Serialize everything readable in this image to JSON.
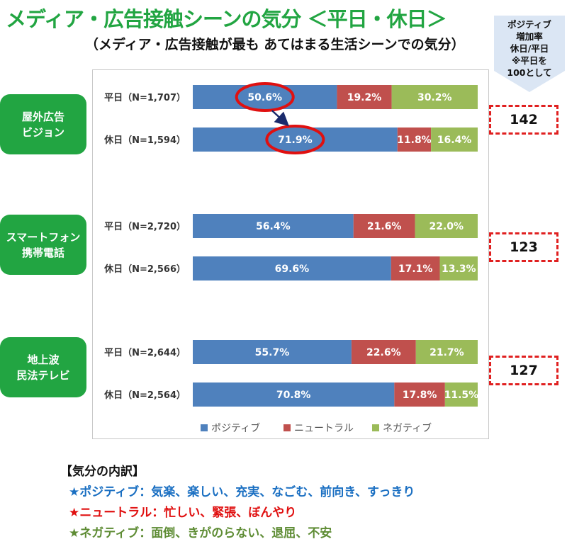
{
  "title": "メディア・広告接触シーンの気分 ＜平日・休日＞",
  "subtitle": "（メディア・広告接触が最も あてはまる生活シーンでの気分）",
  "callout": {
    "lines": [
      "ポジティブ",
      "増加率",
      "休日/平日",
      "※平日を",
      "100として"
    ]
  },
  "colors": {
    "positive": "#4f81bd",
    "neutral": "#c0504d",
    "negative": "#9bbb59",
    "green_label": "#22a542",
    "highlight_red": "#e01010"
  },
  "chart_data": {
    "type": "bar",
    "orientation": "horizontal",
    "stacked": true,
    "percent": true,
    "groups": [
      {
        "name": [
          "屋外広告",
          "ビジョン"
        ],
        "index": "142",
        "rows": [
          {
            "label": "平日（N=1,707）",
            "values": [
              50.6,
              19.2,
              30.2
            ],
            "value_labels": [
              "50.6%",
              "19.2%",
              "30.2%"
            ]
          },
          {
            "label": "休日（N=1,594）",
            "values": [
              71.9,
              11.8,
              16.4
            ],
            "value_labels": [
              "71.9%",
              "11.8%",
              "16.4%"
            ]
          }
        ]
      },
      {
        "name": [
          "スマートフォン",
          "携帯電話"
        ],
        "index": "123",
        "rows": [
          {
            "label": "平日（N=2,720）",
            "values": [
              56.4,
              21.6,
              22.0
            ],
            "value_labels": [
              "56.4%",
              "21.6%",
              "22.0%"
            ]
          },
          {
            "label": "休日（N=2,566）",
            "values": [
              69.6,
              17.1,
              13.3
            ],
            "value_labels": [
              "69.6%",
              "17.1%",
              "13.3%"
            ]
          }
        ]
      },
      {
        "name": [
          "地上波",
          "民法テレビ"
        ],
        "index": "127",
        "rows": [
          {
            "label": "平日（N=2,644）",
            "values": [
              55.7,
              22.6,
              21.7
            ],
            "value_labels": [
              "55.7%",
              "22.6%",
              "21.7%"
            ]
          },
          {
            "label": "休日（N=2,564）",
            "values": [
              70.8,
              17.8,
              11.5
            ],
            "value_labels": [
              "70.8%",
              "17.8%",
              "11.5%"
            ]
          }
        ]
      }
    ],
    "series": [
      {
        "name": "ポジティブ"
      },
      {
        "name": "ニュートラル"
      },
      {
        "name": "ネガティブ"
      }
    ],
    "legend_position": "bottom",
    "xlim": [
      0,
      100
    ],
    "highlight": {
      "group": 0,
      "from_row": 0,
      "to_row": 1,
      "series": 0
    }
  },
  "breakdown": {
    "heading": "【気分の内訳】",
    "items": [
      {
        "text": "★ポジティブ：気楽、楽しい、充実、なごむ、前向き、すっきり",
        "color": "#1a6fc2"
      },
      {
        "text": "★ニュートラル：忙しい、緊張、ぼんやり",
        "color": "#e01010"
      },
      {
        "text": "★ネガティブ：面倒、きがのらない、退屈、不安",
        "color": "#5e8c34"
      }
    ]
  }
}
